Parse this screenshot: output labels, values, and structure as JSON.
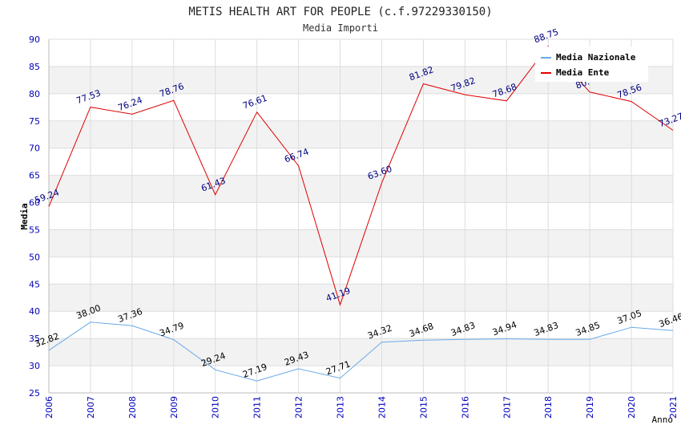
{
  "chart_data": {
    "type": "line",
    "title": "METIS HEALTH ART FOR PEOPLE (c.f.97229330150)",
    "subtitle": "Media Importi",
    "xlabel": "Anno",
    "ylabel": "Media",
    "ylim": [
      25,
      90
    ],
    "y_ticks": [
      "25",
      "30",
      "35",
      "40",
      "45",
      "50",
      "55",
      "60",
      "65",
      "70",
      "75",
      "80",
      "85",
      "90"
    ],
    "categories": [
      "2006",
      "2007",
      "2008",
      "2009",
      "2010",
      "2011",
      "2012",
      "2013",
      "2014",
      "2015",
      "2016",
      "2017",
      "2018",
      "2019",
      "2020",
      "2021"
    ],
    "series": [
      {
        "name": "Media Nazionale",
        "color": "#6aa9e9",
        "label_color": "#000000",
        "values": [
          32.82,
          38.0,
          37.36,
          34.79,
          29.24,
          27.19,
          29.43,
          27.71,
          34.32,
          34.68,
          34.83,
          34.94,
          34.83,
          34.85,
          37.05,
          36.46
        ],
        "labels": [
          "32.82",
          "38.00",
          "37.36",
          "34.79",
          "29.24",
          "27.19",
          "29.43",
          "27.71",
          "34.32",
          "34.68",
          "34.83",
          "34.94",
          "34.83",
          "34.85",
          "37.05",
          "36.46"
        ]
      },
      {
        "name": "Media Ente",
        "color": "#e00000",
        "label_color": "#000080",
        "values": [
          59.24,
          77.53,
          76.24,
          78.76,
          61.43,
          76.61,
          66.74,
          41.19,
          63.6,
          81.82,
          79.82,
          78.68,
          88.75,
          80.3,
          78.56,
          73.27
        ],
        "labels": [
          "59.24",
          "77.53",
          "76.24",
          "78.76",
          "61.43",
          "76.61",
          "66.74",
          "41.19",
          "63.60",
          "81.82",
          "79.82",
          "78.68",
          "88.75",
          "80.",
          "78.56",
          "73.27"
        ]
      }
    ],
    "grid": true,
    "legend_position": "top-right"
  },
  "colors": {
    "band": "#f2f2f2",
    "gridline": "#dddddd",
    "axis_tick_text": "#0000bb",
    "title_text": "#222222"
  }
}
